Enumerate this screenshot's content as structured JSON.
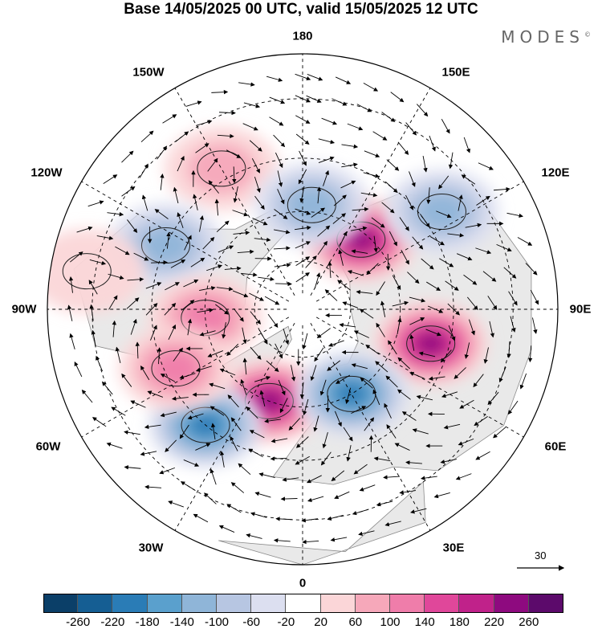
{
  "title": "Base 14/05/2025 00 UTC, valid 15/05/2025 12 UTC",
  "brand": "MODES",
  "brand_mark": "©",
  "longitude_labels": {
    "top": "180",
    "bottom": "0",
    "left": "90W",
    "right": "90E",
    "upper_left": "150W",
    "upper_right": "150E",
    "mid_left": "120W",
    "mid_right": "120E",
    "lower_left": "60W",
    "lower_right": "60E",
    "bottom_left": "30W",
    "bottom_right": "30E"
  },
  "reference_vector": "30",
  "colorbar": {
    "ticks": [
      "-260",
      "-220",
      "-180",
      "-140",
      "-100",
      "-60",
      "-20",
      "20",
      "60",
      "100",
      "140",
      "180",
      "220",
      "260"
    ],
    "colors": [
      "#0b3f68",
      "#155e93",
      "#2a7cb6",
      "#5aa0cd",
      "#8fb5d8",
      "#b7c6e2",
      "#dcdff0",
      "#ffffff",
      "#fbd6d8",
      "#f6a8ba",
      "#ef7daa",
      "#e0479a",
      "#c0228a",
      "#8e0a7f",
      "#5c0a6b"
    ]
  },
  "anomaly_centers": [
    {
      "lon": -20,
      "lat": 60,
      "value": 240,
      "color_name": "magenta"
    },
    {
      "lon": 75,
      "lat": 50,
      "value": 240,
      "color_name": "magenta"
    },
    {
      "lon": 140,
      "lat": 62,
      "value": 240,
      "color_name": "magenta"
    },
    {
      "lon": -40,
      "lat": 45,
      "value": -200,
      "color_name": "blue"
    },
    {
      "lon": 30,
      "lat": 60,
      "value": -200,
      "color_name": "blue"
    },
    {
      "lon": 125,
      "lat": 40,
      "value": -140,
      "color_name": "blue"
    },
    {
      "lon": -150,
      "lat": 42,
      "value": 80,
      "color_name": "pink"
    },
    {
      "lon": -115,
      "lat": 45,
      "value": -120,
      "color_name": "blue"
    },
    {
      "lon": -85,
      "lat": 60,
      "value": 140,
      "color_name": "pink"
    },
    {
      "lon": -65,
      "lat": 48,
      "value": 150,
      "color_name": "pink"
    },
    {
      "lon": 175,
      "lat": 58,
      "value": -140,
      "color_name": "blue"
    },
    {
      "lon": -100,
      "lat": 28,
      "value": 60,
      "color_name": "pink"
    }
  ]
}
